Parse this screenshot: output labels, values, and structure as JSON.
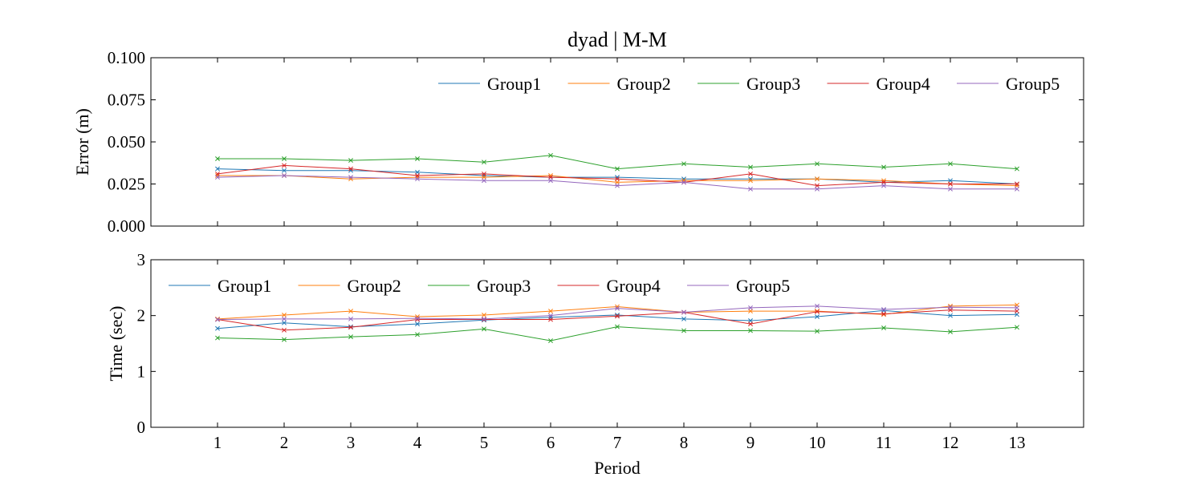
{
  "title": "dyad | M-M",
  "xlabel": "Period",
  "colors": {
    "Group1": "#1f77b4",
    "Group2": "#ff7f0e",
    "Group3": "#2ca02c",
    "Group4": "#d62728",
    "Group5": "#9467bd"
  },
  "chart_data": [
    {
      "type": "line",
      "marker": "x",
      "ylabel": "Error (m)",
      "ylim": [
        0,
        0.1
      ],
      "yticks": [
        "0.000",
        "0.025",
        "0.050",
        "0.075",
        "0.100"
      ],
      "xlim": [
        0,
        14
      ],
      "x": [
        1,
        2,
        3,
        4,
        5,
        6,
        7,
        8,
        9,
        10,
        11,
        12,
        13
      ],
      "legend": "top-right",
      "series": [
        {
          "name": "Group1",
          "values": [
            0.034,
            0.033,
            0.033,
            0.032,
            0.03,
            0.029,
            0.029,
            0.028,
            0.028,
            0.028,
            0.026,
            0.027,
            0.025
          ]
        },
        {
          "name": "Group2",
          "values": [
            0.03,
            0.03,
            0.028,
            0.029,
            0.029,
            0.03,
            0.026,
            0.027,
            0.027,
            0.028,
            0.027,
            0.025,
            0.024
          ]
        },
        {
          "name": "Group3",
          "values": [
            0.04,
            0.04,
            0.039,
            0.04,
            0.038,
            0.042,
            0.034,
            0.037,
            0.035,
            0.037,
            0.035,
            0.037,
            0.034
          ]
        },
        {
          "name": "Group4",
          "values": [
            0.031,
            0.036,
            0.034,
            0.03,
            0.031,
            0.029,
            0.028,
            0.026,
            0.031,
            0.024,
            0.026,
            0.025,
            0.025
          ]
        },
        {
          "name": "Group5",
          "values": [
            0.029,
            0.03,
            0.029,
            0.028,
            0.027,
            0.027,
            0.024,
            0.026,
            0.022,
            0.022,
            0.024,
            0.022,
            0.022
          ]
        }
      ]
    },
    {
      "type": "line",
      "marker": "x",
      "ylabel": "Time (sec)",
      "ylim": [
        0,
        3
      ],
      "yticks": [
        "0",
        "1",
        "2",
        "3"
      ],
      "xlim": [
        0,
        14
      ],
      "x": [
        1,
        2,
        3,
        4,
        5,
        6,
        7,
        8,
        9,
        10,
        11,
        12,
        13
      ],
      "xticks": [
        "1",
        "2",
        "3",
        "4",
        "5",
        "6",
        "7",
        "8",
        "9",
        "10",
        "11",
        "12",
        "13"
      ],
      "legend": "top-left",
      "series": [
        {
          "name": "Group1",
          "values": [
            1.77,
            1.87,
            1.8,
            1.85,
            1.92,
            1.97,
            2.01,
            1.94,
            1.91,
            1.98,
            2.09,
            2.0,
            2.02
          ]
        },
        {
          "name": "Group2",
          "values": [
            1.94,
            2.01,
            2.08,
            1.98,
            2.01,
            2.08,
            2.16,
            2.06,
            2.08,
            2.08,
            2.02,
            2.17,
            2.19
          ]
        },
        {
          "name": "Group3",
          "values": [
            1.6,
            1.57,
            1.62,
            1.66,
            1.76,
            1.55,
            1.8,
            1.73,
            1.73,
            1.72,
            1.78,
            1.71,
            1.79
          ]
        },
        {
          "name": "Group4",
          "values": [
            1.93,
            1.74,
            1.79,
            1.93,
            1.93,
            1.93,
            1.99,
            2.06,
            1.85,
            2.07,
            2.03,
            2.1,
            2.08
          ]
        },
        {
          "name": "Group5",
          "values": [
            1.93,
            1.94,
            1.94,
            1.95,
            1.94,
            2.0,
            2.13,
            2.06,
            2.14,
            2.17,
            2.11,
            2.15,
            2.14
          ]
        }
      ]
    }
  ]
}
